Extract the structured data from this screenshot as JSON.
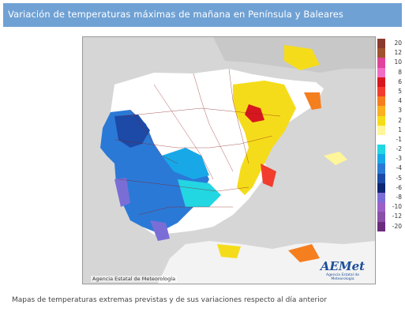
{
  "header": {
    "title": "Variación de temperaturas máximas de mañana en Península y Baleares"
  },
  "map": {
    "credit": "Agencia Estatal de Meteorología",
    "logo_text": "AEMet",
    "logo_subtext": "Agencia Estatal de Meteorología"
  },
  "legend": {
    "items": [
      {
        "label": "20",
        "color": "#8b3a2e"
      },
      {
        "label": "12",
        "color": "#a0522d"
      },
      {
        "label": "10",
        "color": "#e0449a"
      },
      {
        "label": "8",
        "color": "#f06dc4"
      },
      {
        "label": "6",
        "color": "#d7171f"
      },
      {
        "label": "5",
        "color": "#f23d2e"
      },
      {
        "label": "4",
        "color": "#f57e1f"
      },
      {
        "label": "3",
        "color": "#f9b021"
      },
      {
        "label": "2",
        "color": "#f5dc1a"
      },
      {
        "label": "1",
        "color": "#fff59a"
      },
      {
        "label": "-1",
        "color": "#ffffff"
      },
      {
        "label": "-2",
        "color": "#22d6e2"
      },
      {
        "label": "-3",
        "color": "#18a8e8"
      },
      {
        "label": "-4",
        "color": "#2b79d6"
      },
      {
        "label": "-5",
        "color": "#1c4aa6"
      },
      {
        "label": "-6",
        "color": "#0e2773"
      },
      {
        "label": "-8",
        "color": "#7a6ed6"
      },
      {
        "label": "-10",
        "color": "#9a60c8"
      },
      {
        "label": "-12",
        "color": "#8a4fa8"
      },
      {
        "label": "-20",
        "color": "#6b2c7e"
      }
    ]
  },
  "caption": "Mapas de temperaturas extremas previstas y de sus variaciones respecto al día anterior"
}
